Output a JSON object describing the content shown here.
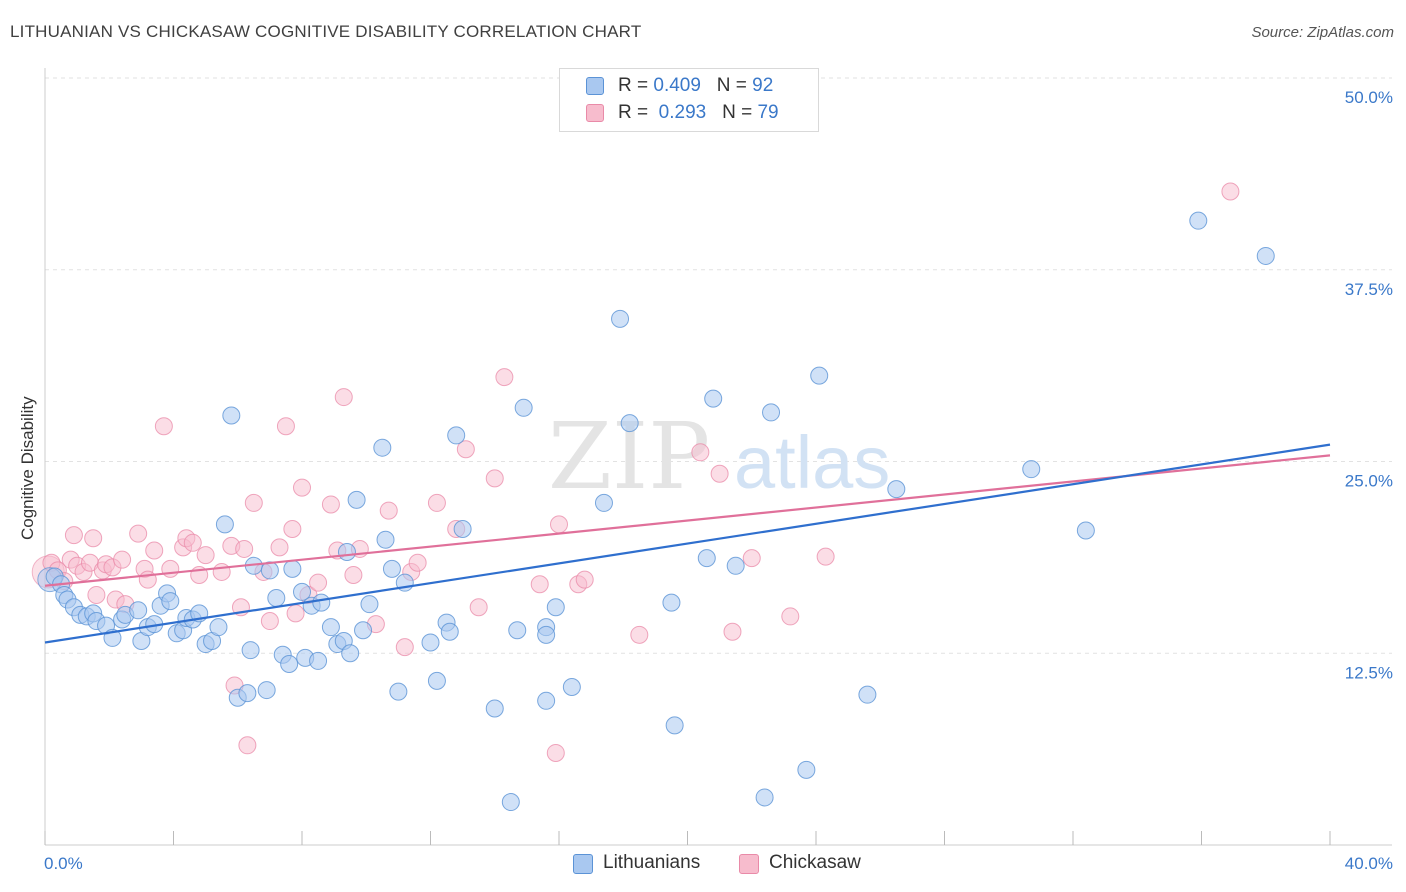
{
  "header": {
    "title": "LITHUANIAN VS CHICKASAW COGNITIVE DISABILITY CORRELATION CHART",
    "source": "Source: ZipAtlas.com"
  },
  "legend_top": {
    "rows": [
      {
        "r_label": "R =",
        "r_value": "0.409",
        "n_label": "N =",
        "n_value": "92"
      },
      {
        "r_label": "R =",
        "r_value": "0.293",
        "n_label": "N =",
        "n_value": "79"
      }
    ]
  },
  "legend_bottom": {
    "lithuanians": "Lithuanians",
    "chickasaw": "Chickasaw"
  },
  "watermark": {
    "zip": "ZIP",
    "atlas": "atlas"
  },
  "colors": {
    "blue_fill": "#a9c8f0",
    "blue_stroke": "#5b93d6",
    "blue_line": "#2f6fce",
    "pink_fill": "#f7bccd",
    "pink_stroke": "#e98aa8",
    "pink_line": "#e0709a",
    "tick_label": "#3a78c9"
  },
  "chart_data": {
    "type": "scatter",
    "title": "LITHUANIAN VS CHICKASAW COGNITIVE DISABILITY CORRELATION CHART",
    "xlabel": "",
    "ylabel": "Cognitive Disability",
    "xlim": [
      0,
      40
    ],
    "ylim": [
      0,
      50
    ],
    "x_tick_labels": [
      "0.0%",
      "40.0%"
    ],
    "y_ticks": [
      12.5,
      25.0,
      37.5,
      50.0
    ],
    "y_tick_labels": [
      "12.5%",
      "25.0%",
      "37.5%",
      "50.0%"
    ],
    "grid": "horizontal dashed",
    "legend_position": "top-center",
    "series": [
      {
        "name": "Lithuanians",
        "r": 0.409,
        "n": 92,
        "trend": [
          [
            0,
            13.2
          ],
          [
            40,
            26.1
          ]
        ],
        "points": [
          [
            0.3,
            17.5
          ],
          [
            0.5,
            17.0
          ],
          [
            0.6,
            16.3
          ],
          [
            0.7,
            16.0
          ],
          [
            0.9,
            15.5
          ],
          [
            1.1,
            15.0
          ],
          [
            1.3,
            14.9
          ],
          [
            1.5,
            15.1
          ],
          [
            1.6,
            14.6
          ],
          [
            1.9,
            14.3
          ],
          [
            2.1,
            13.5
          ],
          [
            2.4,
            14.7
          ],
          [
            2.5,
            15.0
          ],
          [
            2.9,
            15.3
          ],
          [
            3.0,
            13.3
          ],
          [
            3.2,
            14.2
          ],
          [
            3.4,
            14.4
          ],
          [
            3.6,
            15.6
          ],
          [
            3.8,
            16.4
          ],
          [
            3.9,
            15.9
          ],
          [
            4.1,
            13.8
          ],
          [
            4.3,
            14.0
          ],
          [
            4.4,
            14.8
          ],
          [
            4.6,
            14.7
          ],
          [
            4.8,
            15.1
          ],
          [
            5.0,
            13.1
          ],
          [
            5.2,
            13.3
          ],
          [
            5.4,
            14.2
          ],
          [
            5.6,
            20.9
          ],
          [
            5.8,
            28.0
          ],
          [
            6.0,
            9.6
          ],
          [
            6.3,
            9.9
          ],
          [
            6.4,
            12.7
          ],
          [
            6.5,
            18.2
          ],
          [
            6.9,
            10.1
          ],
          [
            7.0,
            17.9
          ],
          [
            7.2,
            16.1
          ],
          [
            7.4,
            12.4
          ],
          [
            7.6,
            11.8
          ],
          [
            7.7,
            18.0
          ],
          [
            8.0,
            16.5
          ],
          [
            8.1,
            12.2
          ],
          [
            8.3,
            15.6
          ],
          [
            8.5,
            12.0
          ],
          [
            8.6,
            15.8
          ],
          [
            8.9,
            14.2
          ],
          [
            9.1,
            13.1
          ],
          [
            9.3,
            13.3
          ],
          [
            9.4,
            19.1
          ],
          [
            9.5,
            12.5
          ],
          [
            9.7,
            22.5
          ],
          [
            9.9,
            14.0
          ],
          [
            10.1,
            15.7
          ],
          [
            10.5,
            25.9
          ],
          [
            10.6,
            19.9
          ],
          [
            10.8,
            18.0
          ],
          [
            11.0,
            10.0
          ],
          [
            11.2,
            17.1
          ],
          [
            12.0,
            13.2
          ],
          [
            12.2,
            10.7
          ],
          [
            12.5,
            14.5
          ],
          [
            12.6,
            13.9
          ],
          [
            12.8,
            26.7
          ],
          [
            13.0,
            20.6
          ],
          [
            14.0,
            8.9
          ],
          [
            14.5,
            2.8
          ],
          [
            14.7,
            14.0
          ],
          [
            14.9,
            28.5
          ],
          [
            15.6,
            9.4
          ],
          [
            15.6,
            14.2
          ],
          [
            15.6,
            13.7
          ],
          [
            15.9,
            15.5
          ],
          [
            16.4,
            10.3
          ],
          [
            17.4,
            22.3
          ],
          [
            17.9,
            34.3
          ],
          [
            18.2,
            27.5
          ],
          [
            19.5,
            15.8
          ],
          [
            19.6,
            7.8
          ],
          [
            20.6,
            18.7
          ],
          [
            20.8,
            29.1
          ],
          [
            21.5,
            18.2
          ],
          [
            22.4,
            3.1
          ],
          [
            22.6,
            28.2
          ],
          [
            23.7,
            4.9
          ],
          [
            24.1,
            30.6
          ],
          [
            25.6,
            9.8
          ],
          [
            26.5,
            23.2
          ],
          [
            30.7,
            24.5
          ],
          [
            32.4,
            20.5
          ],
          [
            35.9,
            40.7
          ],
          [
            38.0,
            38.4
          ]
        ]
      },
      {
        "name": "Chickasaw",
        "r": 0.293,
        "n": 79,
        "trend": [
          [
            0,
            16.9
          ],
          [
            40,
            25.4
          ]
        ],
        "points": [
          [
            0.2,
            18.4
          ],
          [
            0.4,
            17.9
          ],
          [
            0.6,
            17.2
          ],
          [
            0.8,
            18.6
          ],
          [
            0.9,
            20.2
          ],
          [
            1.0,
            18.2
          ],
          [
            1.2,
            17.8
          ],
          [
            1.4,
            18.4
          ],
          [
            1.5,
            20.0
          ],
          [
            1.6,
            16.3
          ],
          [
            1.8,
            17.9
          ],
          [
            1.9,
            18.3
          ],
          [
            2.1,
            18.1
          ],
          [
            2.2,
            16.0
          ],
          [
            2.4,
            18.6
          ],
          [
            2.5,
            15.7
          ],
          [
            2.9,
            20.3
          ],
          [
            3.1,
            18.0
          ],
          [
            3.2,
            17.3
          ],
          [
            3.4,
            19.2
          ],
          [
            3.7,
            27.3
          ],
          [
            3.9,
            18.0
          ],
          [
            4.3,
            19.4
          ],
          [
            4.4,
            20.0
          ],
          [
            4.6,
            19.7
          ],
          [
            4.8,
            17.6
          ],
          [
            5.0,
            18.9
          ],
          [
            5.5,
            17.8
          ],
          [
            5.8,
            19.5
          ],
          [
            5.9,
            10.4
          ],
          [
            6.1,
            15.5
          ],
          [
            6.2,
            19.3
          ],
          [
            6.3,
            6.5
          ],
          [
            6.5,
            22.3
          ],
          [
            6.8,
            17.8
          ],
          [
            7.0,
            14.6
          ],
          [
            7.3,
            19.4
          ],
          [
            7.5,
            27.3
          ],
          [
            7.7,
            20.6
          ],
          [
            7.8,
            15.1
          ],
          [
            8.0,
            23.3
          ],
          [
            8.2,
            16.3
          ],
          [
            8.5,
            17.1
          ],
          [
            8.9,
            22.2
          ],
          [
            9.1,
            19.2
          ],
          [
            9.3,
            29.2
          ],
          [
            9.6,
            17.6
          ],
          [
            9.8,
            19.3
          ],
          [
            10.3,
            14.4
          ],
          [
            10.7,
            21.8
          ],
          [
            11.2,
            12.9
          ],
          [
            11.4,
            17.8
          ],
          [
            11.6,
            18.4
          ],
          [
            12.2,
            22.3
          ],
          [
            12.8,
            20.6
          ],
          [
            13.1,
            25.8
          ],
          [
            13.5,
            15.5
          ],
          [
            14.0,
            23.9
          ],
          [
            14.3,
            30.5
          ],
          [
            15.4,
            17.0
          ],
          [
            15.9,
            6.0
          ],
          [
            16.0,
            20.9
          ],
          [
            16.6,
            17.0
          ],
          [
            16.8,
            17.3
          ],
          [
            18.5,
            13.7
          ],
          [
            20.4,
            25.6
          ],
          [
            21.0,
            24.2
          ],
          [
            21.4,
            13.9
          ],
          [
            22.0,
            18.7
          ],
          [
            23.2,
            14.9
          ],
          [
            24.3,
            18.8
          ],
          [
            36.9,
            42.6
          ]
        ]
      }
    ]
  }
}
